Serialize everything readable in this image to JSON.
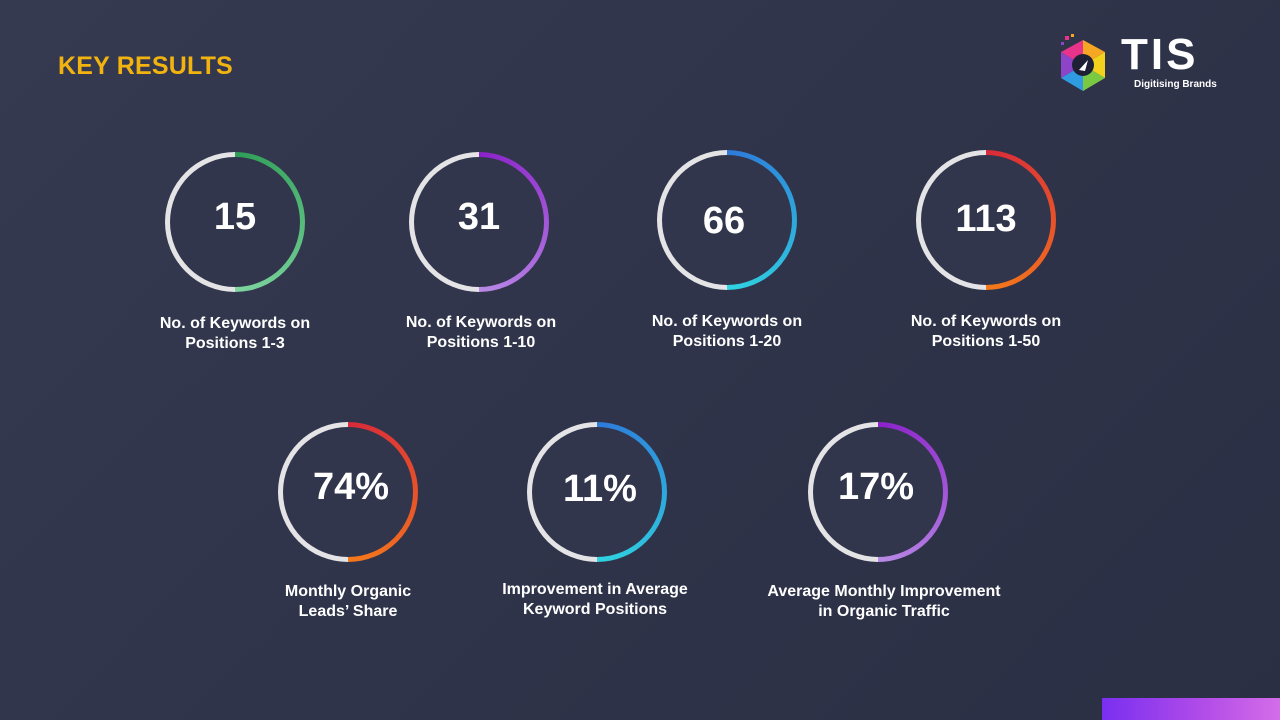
{
  "header": {
    "title": "KEY RESULTS"
  },
  "logo": {
    "word": "TIS",
    "tagline": "Digitising Brands"
  },
  "colors": {
    "title": "#f2b30f",
    "track": "#e4e4e6",
    "background": "#32364c"
  },
  "metrics": [
    {
      "value": "15",
      "label_line1": "No. of Keywords on",
      "label_line2": "Positions 1-3",
      "gradient": [
        "#2e9e57",
        "#7fd6a0"
      ]
    },
    {
      "value": "31",
      "label_line1": "No. of Keywords on",
      "label_line2": "Positions 1-10",
      "gradient": [
        "#8b22c9",
        "#b98ae6"
      ]
    },
    {
      "value": "66",
      "label_line1": "No. of Keywords on",
      "label_line2": "Positions 1-20",
      "gradient": [
        "#2e7ad9",
        "#2fd4e0"
      ]
    },
    {
      "value": "113",
      "label_line1": "No. of Keywords on",
      "label_line2": "Positions 1-50",
      "gradient": [
        "#d92a3a",
        "#f57a1a"
      ]
    },
    {
      "value": "74%",
      "label_line1": "Monthly Organic",
      "label_line2": "Leads’ Share",
      "gradient": [
        "#d92a3a",
        "#f57a1a"
      ]
    },
    {
      "value": "11%",
      "label_line1": "Improvement in Average",
      "label_line2": "Keyword Positions",
      "gradient": [
        "#2e7ad9",
        "#2fd4e0"
      ]
    },
    {
      "value": "17%",
      "label_line1": "Average Monthly Improvement",
      "label_line2": "in Organic Traffic",
      "gradient": [
        "#8b22c9",
        "#b98ae6"
      ]
    }
  ]
}
